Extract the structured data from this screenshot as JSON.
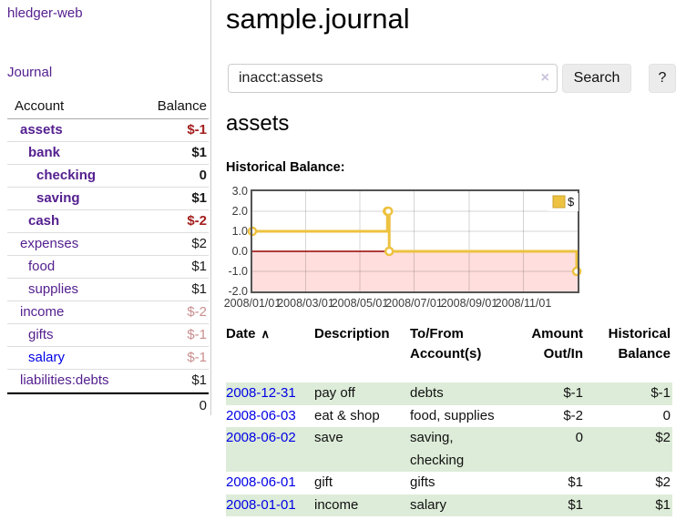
{
  "brand": "hledger-web",
  "nav": {
    "journal": "Journal"
  },
  "accounts_panel": {
    "headers": {
      "account": "Account",
      "balance": "Balance"
    },
    "rows": [
      {
        "name": "assets",
        "balance": "$-1",
        "depth": 0,
        "emph": true,
        "neg": "strong"
      },
      {
        "name": "bank",
        "balance": "$1",
        "depth": 1,
        "emph": true
      },
      {
        "name": "checking",
        "balance": "0",
        "depth": 2,
        "emph": true
      },
      {
        "name": "saving",
        "balance": "$1",
        "depth": 2,
        "emph": true
      },
      {
        "name": "cash",
        "balance": "$-2",
        "depth": 1,
        "emph": true,
        "neg": "strong"
      },
      {
        "name": "expenses",
        "balance": "$2",
        "depth": 0
      },
      {
        "name": "food",
        "balance": "$1",
        "depth": 1
      },
      {
        "name": "supplies",
        "balance": "$1",
        "depth": 1
      },
      {
        "name": "income",
        "balance": "$-2",
        "depth": 0,
        "neg": "soft"
      },
      {
        "name": "gifts",
        "balance": "$-1",
        "depth": 1,
        "neg": "soft"
      },
      {
        "name": "salary",
        "balance": "$-1",
        "depth": 1,
        "neg": "soft",
        "link": "unvisited"
      },
      {
        "name": "liabilities:debts",
        "balance": "$1",
        "depth": 0
      }
    ],
    "total": "0"
  },
  "header": {
    "title": "sample.journal"
  },
  "search": {
    "value": "inacct:assets",
    "clear": "×",
    "submit": "Search",
    "help": "?"
  },
  "account_view": {
    "heading": "assets",
    "chart_title": "Historical Balance:"
  },
  "chart_data": {
    "type": "line",
    "step": true,
    "title": "Historical Balance",
    "series": [
      {
        "name": "$",
        "color": "#edc240",
        "points": [
          [
            "2008-01-01",
            1
          ],
          [
            "2008-06-01",
            2
          ],
          [
            "2008-06-02",
            2
          ],
          [
            "2008-06-03",
            0
          ],
          [
            "2008-12-31",
            -1
          ]
        ]
      }
    ],
    "x_start": "2008-01-01",
    "x_end": "2009-01-01",
    "x_ticks": [
      {
        "label": "2008/01/01",
        "date": "2008-01-01"
      },
      {
        "label": "2008/03/01",
        "date": "2008-03-01"
      },
      {
        "label": "2008/05/01",
        "date": "2008-05-01"
      },
      {
        "label": "2008/07/01",
        "date": "2008-07-01"
      },
      {
        "label": "2008/09/01",
        "date": "2008-09-01"
      },
      {
        "label": "2008/11/01",
        "date": "2008-11-01"
      }
    ],
    "y_ticks": [
      {
        "label": "3.0",
        "value": 3
      },
      {
        "label": "2.0",
        "value": 2
      },
      {
        "label": "1.0",
        "value": 1
      },
      {
        "label": "0.0",
        "value": 0
      },
      {
        "label": "-1.0",
        "value": -1
      },
      {
        "label": "-2.0",
        "value": -2
      }
    ],
    "ylim": [
      -2,
      3
    ],
    "grid": true,
    "legend_position": "top-right",
    "negative_region": {
      "from": 0,
      "to": -2,
      "color": "#ffdedd"
    },
    "zero_line_color": "#990000",
    "border_color": "#545454"
  },
  "register": {
    "headers": {
      "date": "Date",
      "sort_icon": "∧",
      "description": "Description",
      "accounts_l1": "To/From",
      "accounts_l2": "Account(s)",
      "amount_l1": "Amount",
      "amount_l2": "Out/In",
      "balance_l1": "Historical",
      "balance_l2": "Balance"
    },
    "rows": [
      {
        "date": "2008-12-31",
        "description": "pay off",
        "accounts": "debts",
        "amount": "$-1",
        "balance": "$-1",
        "amount_neg": true,
        "balance_neg": true,
        "shaded": true
      },
      {
        "date": "2008-06-03",
        "description": "eat & shop",
        "accounts": "food, supplies",
        "amount": "$-2",
        "balance": "0",
        "amount_neg": true,
        "balance_neg": false,
        "shaded": false
      },
      {
        "date": "2008-06-02",
        "description": "save",
        "accounts": "saving, checking",
        "amount": "0",
        "balance": "$2",
        "amount_neg": false,
        "balance_neg": false,
        "shaded": true
      },
      {
        "date": "2008-06-01",
        "description": "gift",
        "accounts": "gifts",
        "amount": "$1",
        "balance": "$2",
        "amount_neg": false,
        "balance_neg": false,
        "shaded": false
      },
      {
        "date": "2008-01-01",
        "description": "income",
        "accounts": "salary",
        "amount": "$1",
        "balance": "$1",
        "amount_neg": false,
        "balance_neg": false,
        "shaded": true
      }
    ]
  },
  "colors": {
    "link_visited_purple": "#54208f",
    "link_unvisited_blue": "#0000e6",
    "negative_strong": "#a41e1e",
    "negative_soft": "#c98e8e",
    "register_negative": "#972020",
    "row_shade_green": "#ddecd8",
    "series_gold": "#edc240"
  }
}
